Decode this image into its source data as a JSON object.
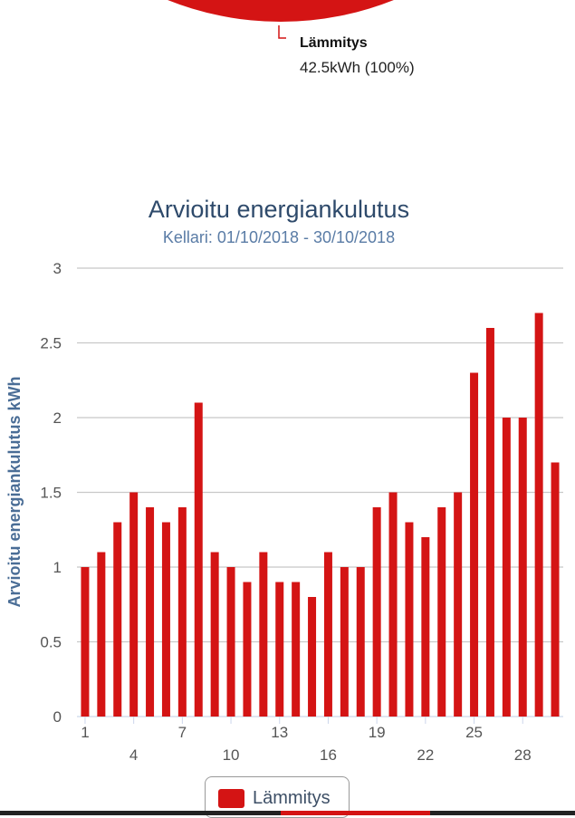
{
  "pie_label": {
    "name": "Lämmitys",
    "value": "42.5kWh (100%)"
  },
  "colors": {
    "series": "#d41414",
    "title": "#2e4a6b",
    "subtitle": "#5a7ca6",
    "axis_title": "#4a6d96"
  },
  "chart_data": {
    "type": "bar",
    "title": "Arvioitu energiankulutus",
    "subtitle": "Kellari: 01/10/2018 - 30/10/2018",
    "xlabel": "",
    "ylabel": "Arvioitu energiankulutus kWh",
    "ylim": [
      0,
      3
    ],
    "yticks": [
      "0",
      "0.5",
      "1",
      "1.5",
      "2",
      "2.5",
      "3"
    ],
    "categories": [
      1,
      2,
      3,
      4,
      5,
      6,
      7,
      8,
      9,
      10,
      11,
      12,
      13,
      14,
      15,
      16,
      17,
      18,
      19,
      20,
      21,
      22,
      23,
      24,
      25,
      26,
      27,
      28,
      29,
      30
    ],
    "xtick_labels": [
      "1",
      "4",
      "7",
      "10",
      "13",
      "16",
      "19",
      "22",
      "25",
      "28"
    ],
    "series": [
      {
        "name": "Lämmitys",
        "values": [
          1.0,
          1.1,
          1.3,
          1.5,
          1.4,
          1.3,
          1.4,
          2.1,
          1.1,
          1.0,
          0.9,
          1.1,
          0.9,
          0.9,
          0.8,
          1.1,
          1.0,
          1.0,
          1.4,
          1.5,
          1.3,
          1.2,
          1.4,
          1.5,
          2.3,
          2.6,
          2.0,
          2.0,
          2.7,
          1.7
        ]
      }
    ],
    "grid": true,
    "legend": "bottom-center"
  }
}
